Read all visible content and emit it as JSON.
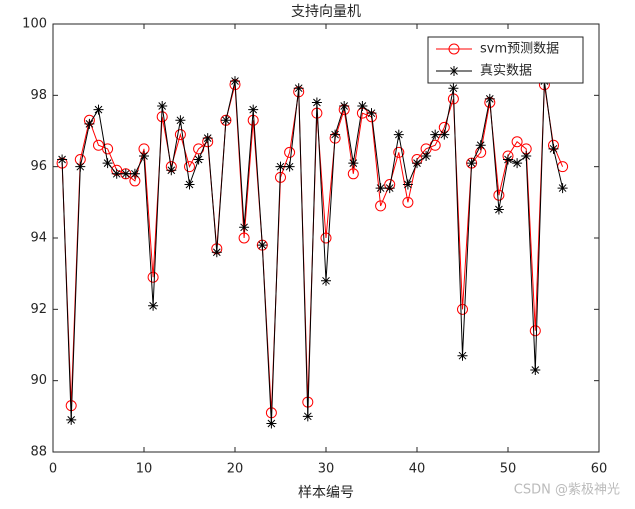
{
  "chart_data": {
    "type": "line",
    "title": "支持向量机",
    "xlabel": "样本编号",
    "x": [
      1,
      2,
      3,
      4,
      5,
      6,
      7,
      8,
      9,
      10,
      11,
      12,
      13,
      14,
      15,
      16,
      17,
      18,
      19,
      20,
      21,
      22,
      23,
      24,
      25,
      26,
      27,
      28,
      29,
      30,
      31,
      32,
      33,
      34,
      35,
      36,
      37,
      38,
      39,
      40,
      41,
      42,
      43,
      44,
      45,
      46,
      47,
      48,
      49,
      50,
      51,
      52,
      53,
      54,
      55,
      56
    ],
    "series": [
      {
        "name": "svm预测数据",
        "color": "#ff0000",
        "marker": "circle",
        "values": [
          96.1,
          89.3,
          96.2,
          97.3,
          96.6,
          96.5,
          95.9,
          95.8,
          95.6,
          96.5,
          92.9,
          97.4,
          96.0,
          96.9,
          96.0,
          96.5,
          96.7,
          93.7,
          97.3,
          98.3,
          94.0,
          97.3,
          93.8,
          89.1,
          95.7,
          96.4,
          98.1,
          89.4,
          97.5,
          94.0,
          96.8,
          97.6,
          95.8,
          97.5,
          97.4,
          94.9,
          95.5,
          96.4,
          95.0,
          96.2,
          96.5,
          96.6,
          97.1,
          97.9,
          92.0,
          96.1,
          96.4,
          97.8,
          95.2,
          96.3,
          96.7,
          96.5,
          91.4,
          98.3,
          96.6,
          96.0
        ]
      },
      {
        "name": "真实数据",
        "color": "#000000",
        "marker": "asterisk",
        "values": [
          96.2,
          88.9,
          96.0,
          97.2,
          97.6,
          96.1,
          95.8,
          95.8,
          95.8,
          96.3,
          92.1,
          97.7,
          95.9,
          97.3,
          95.5,
          96.2,
          96.8,
          93.6,
          97.3,
          98.4,
          94.3,
          97.6,
          93.8,
          88.8,
          96.0,
          96.0,
          98.2,
          89.0,
          97.8,
          92.8,
          96.9,
          97.7,
          96.1,
          97.7,
          97.5,
          95.4,
          95.4,
          96.9,
          95.5,
          96.1,
          96.3,
          96.9,
          96.9,
          98.2,
          90.7,
          96.1,
          96.6,
          97.9,
          94.8,
          96.2,
          96.1,
          96.3,
          90.3,
          98.4,
          96.5,
          95.4
        ]
      }
    ],
    "xlim": [
      0,
      60
    ],
    "xticks": [
      0,
      10,
      20,
      30,
      40,
      50,
      60
    ],
    "ylim": [
      88,
      100
    ],
    "yticks": [
      88,
      90,
      92,
      94,
      96,
      98,
      100
    ],
    "legend": "upper right",
    "watermark": "CSDN @紫极神光"
  }
}
